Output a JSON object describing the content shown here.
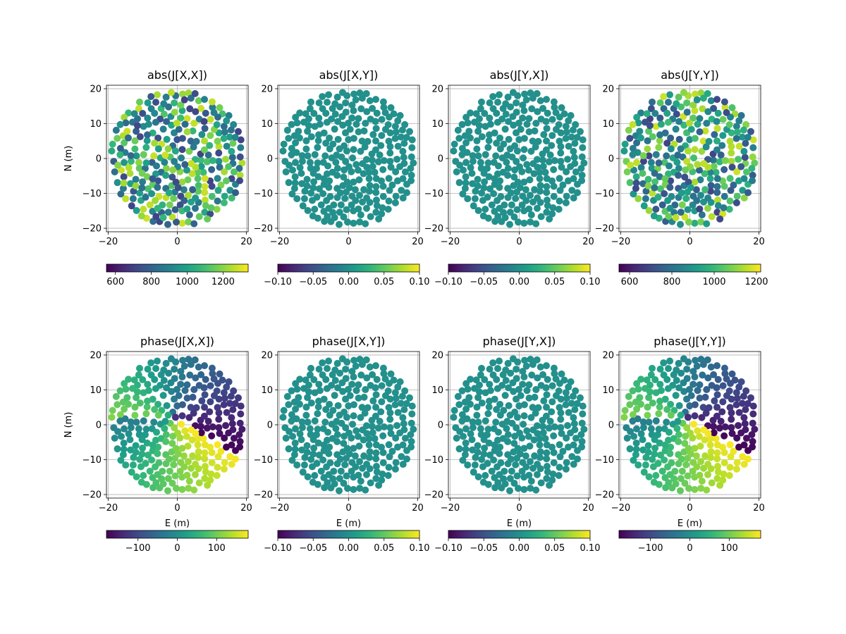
{
  "chart_data": [
    {
      "type": "scatter",
      "title": "abs(J[X,X])",
      "xlabel": "",
      "ylabel": "N (m)",
      "xlim": [
        -20.5,
        20.5
      ],
      "ylim": [
        -21,
        21
      ],
      "xticks": [
        "−20",
        "0",
        "20"
      ],
      "yticks": [
        "−20",
        "−10",
        "0",
        "10",
        "20"
      ],
      "grid": true,
      "colorbar": {
        "cmap": "viridis",
        "min": 550,
        "max": 1340,
        "ticks": [
          "600",
          "800",
          "1000",
          "1200"
        ]
      },
      "color_field": "varied"
    },
    {
      "type": "scatter",
      "title": "abs(J[X,Y])",
      "xlabel": "",
      "ylabel": "",
      "xlim": [
        -20.5,
        20.5
      ],
      "ylim": [
        -21,
        21
      ],
      "xticks": [
        "−20",
        "0",
        "20"
      ],
      "yticks": [
        "−20",
        "−10",
        "0",
        "10",
        "20"
      ],
      "grid": true,
      "colorbar": {
        "cmap": "viridis",
        "min": -0.1,
        "max": 0.1,
        "ticks": [
          "−0.10",
          "−0.05",
          "0.00",
          "0.05",
          "0.10"
        ]
      },
      "color_field": "uniform"
    },
    {
      "type": "scatter",
      "title": "abs(J[Y,X])",
      "xlabel": "",
      "ylabel": "",
      "xlim": [
        -20.5,
        20.5
      ],
      "ylim": [
        -21,
        21
      ],
      "xticks": [
        "−20",
        "0",
        "20"
      ],
      "yticks": [
        "−20",
        "−10",
        "0",
        "10",
        "20"
      ],
      "grid": true,
      "colorbar": {
        "cmap": "viridis",
        "min": -0.1,
        "max": 0.1,
        "ticks": [
          "−0.10",
          "−0.05",
          "0.00",
          "0.05",
          "0.10"
        ]
      },
      "color_field": "uniform"
    },
    {
      "type": "scatter",
      "title": "abs(J[Y,Y])",
      "xlabel": "",
      "ylabel": "",
      "xlim": [
        -20.5,
        20.5
      ],
      "ylim": [
        -21,
        21
      ],
      "xticks": [
        "−20",
        "0",
        "20"
      ],
      "yticks": [
        "−20",
        "−10",
        "0",
        "10",
        "20"
      ],
      "grid": true,
      "colorbar": {
        "cmap": "viridis",
        "min": 550,
        "max": 1220,
        "ticks": [
          "600",
          "800",
          "1000",
          "1200"
        ]
      },
      "color_field": "varied"
    },
    {
      "type": "scatter",
      "title": "phase(J[X,X])",
      "xlabel": "E (m)",
      "ylabel": "N (m)",
      "xlim": [
        -20.5,
        20.5
      ],
      "ylim": [
        -21,
        21
      ],
      "xticks": [
        "−20",
        "0",
        "20"
      ],
      "yticks": [
        "−20",
        "−10",
        "0",
        "10",
        "20"
      ],
      "grid": true,
      "colorbar": {
        "cmap": "viridis",
        "min": -180,
        "max": 180,
        "ticks": [
          "−100",
          "0",
          "100"
        ]
      },
      "color_field": "phase"
    },
    {
      "type": "scatter",
      "title": "phase(J[X,Y])",
      "xlabel": "E (m)",
      "ylabel": "",
      "xlim": [
        -20.5,
        20.5
      ],
      "ylim": [
        -21,
        21
      ],
      "xticks": [
        "−20",
        "0",
        "20"
      ],
      "yticks": [
        "−20",
        "−10",
        "0",
        "10",
        "20"
      ],
      "grid": true,
      "colorbar": {
        "cmap": "viridis",
        "min": -0.1,
        "max": 0.1,
        "ticks": [
          "−0.10",
          "−0.05",
          "0.00",
          "0.05",
          "0.10"
        ]
      },
      "color_field": "uniform"
    },
    {
      "type": "scatter",
      "title": "phase(J[Y,X])",
      "xlabel": "E (m)",
      "ylabel": "",
      "xlim": [
        -20.5,
        20.5
      ],
      "ylim": [
        -21,
        21
      ],
      "xticks": [
        "−20",
        "0",
        "20"
      ],
      "yticks": [
        "−20",
        "−10",
        "0",
        "10",
        "20"
      ],
      "grid": true,
      "colorbar": {
        "cmap": "viridis",
        "min": -0.1,
        "max": 0.1,
        "ticks": [
          "−0.10",
          "−0.05",
          "0.00",
          "0.05",
          "0.10"
        ]
      },
      "color_field": "uniform"
    },
    {
      "type": "scatter",
      "title": "phase(J[Y,Y])",
      "xlabel": "E (m)",
      "ylabel": "",
      "xlim": [
        -20.5,
        20.5
      ],
      "ylim": [
        -21,
        21
      ],
      "xticks": [
        "−20",
        "0",
        "20"
      ],
      "yticks": [
        "−20",
        "−10",
        "0",
        "10",
        "20"
      ],
      "grid": true,
      "colorbar": {
        "cmap": "viridis",
        "min": -180,
        "max": 180,
        "ticks": [
          "−100",
          "0",
          "100"
        ]
      },
      "color_field": "phase"
    }
  ]
}
